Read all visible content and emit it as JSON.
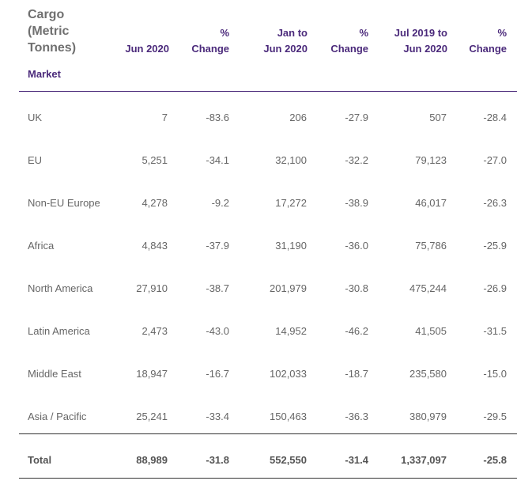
{
  "header": {
    "title_lines": [
      "Cargo",
      "(Metric",
      "Tonnes)"
    ],
    "market": "Market",
    "cols": [
      [
        "",
        "Jun 2020"
      ],
      [
        "%",
        "Change"
      ],
      [
        "Jan to",
        "Jun 2020"
      ],
      [
        "%",
        "Change"
      ],
      [
        "Jul 2019 to",
        "Jun 2020"
      ],
      [
        "%",
        "Change"
      ]
    ]
  },
  "rows": [
    {
      "market": "UK",
      "jun": "7",
      "jun_chg": "-83.6",
      "ytd": "206",
      "ytd_chg": "-27.9",
      "yr": "507",
      "yr_chg": "-28.4"
    },
    {
      "market": "EU",
      "jun": "5,251",
      "jun_chg": "-34.1",
      "ytd": "32,100",
      "ytd_chg": "-32.2",
      "yr": "79,123",
      "yr_chg": "-27.0"
    },
    {
      "market": "Non-EU Europe",
      "jun": "4,278",
      "jun_chg": "-9.2",
      "ytd": "17,272",
      "ytd_chg": "-38.9",
      "yr": "46,017",
      "yr_chg": "-26.3"
    },
    {
      "market": "Africa",
      "jun": "4,843",
      "jun_chg": "-37.9",
      "ytd": "31,190",
      "ytd_chg": "-36.0",
      "yr": "75,786",
      "yr_chg": "-25.9"
    },
    {
      "market": "North America",
      "jun": "27,910",
      "jun_chg": "-38.7",
      "ytd": "201,979",
      "ytd_chg": "-30.8",
      "yr": "475,244",
      "yr_chg": "-26.9"
    },
    {
      "market": "Latin America",
      "jun": "2,473",
      "jun_chg": "-43.0",
      "ytd": "14,952",
      "ytd_chg": "-46.2",
      "yr": "41,505",
      "yr_chg": "-31.5"
    },
    {
      "market": "Middle East",
      "jun": "18,947",
      "jun_chg": "-16.7",
      "ytd": "102,033",
      "ytd_chg": "-18.7",
      "yr": "235,580",
      "yr_chg": "-15.0"
    },
    {
      "market": "Asia / Pacific",
      "jun": "25,241",
      "jun_chg": "-33.4",
      "ytd": "150,463",
      "ytd_chg": "-36.3",
      "yr": "380,979",
      "yr_chg": "-29.5"
    }
  ],
  "total": {
    "market": "Total",
    "jun": "88,989",
    "jun_chg": "-31.8",
    "ytd": "552,550",
    "ytd_chg": "-31.4",
    "yr": "1,337,097",
    "yr_chg": "-25.8"
  }
}
